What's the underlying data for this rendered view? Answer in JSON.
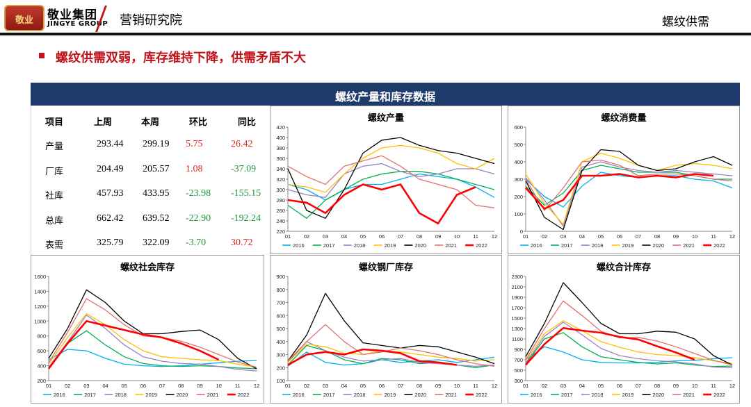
{
  "header": {
    "logo_text": "敬业",
    "company_cn": "敬业集团",
    "company_en": "JINGYE GROUP",
    "institute": "营销研究院",
    "section": "螺纹供需"
  },
  "subtitle": "螺纹供需双弱，库存维持下降，供需矛盾不大",
  "panel_title": "螺纹产量和库存数据",
  "colors": {
    "accent_red": "#c0141c",
    "navy": "#1f3b6b",
    "positive": "#e0251b",
    "negative": "#1f9a3a"
  },
  "table": {
    "headers": [
      "项目",
      "上周",
      "本周",
      "环比",
      "同比"
    ],
    "rows": [
      {
        "name": "产量",
        "prev": "293.44",
        "curr": "299.19",
        "wow": "5.75",
        "yoy": "26.42",
        "wow_sign": "pos",
        "yoy_sign": "pos"
      },
      {
        "name": "厂库",
        "prev": "204.49",
        "curr": "205.57",
        "wow": "1.08",
        "yoy": "-37.09",
        "wow_sign": "pos",
        "yoy_sign": "neg"
      },
      {
        "name": "社库",
        "prev": "457.93",
        "curr": "433.95",
        "wow": "-23.98",
        "yoy": "-155.15",
        "wow_sign": "neg",
        "yoy_sign": "neg"
      },
      {
        "name": "总库",
        "prev": "662.42",
        "curr": "639.52",
        "wow": "-22.90",
        "yoy": "-192.24",
        "wow_sign": "neg",
        "yoy_sign": "neg"
      },
      {
        "name": "表需",
        "prev": "325.79",
        "curr": "322.09",
        "wow": "-3.70",
        "yoy": "30.72",
        "wow_sign": "neg",
        "yoy_sign": "pos"
      }
    ]
  },
  "series_style": [
    {
      "name": "2016",
      "color": "#00b0f0"
    },
    {
      "name": "2017",
      "color": "#00b050"
    },
    {
      "name": "2018",
      "color": "#9b7fc7"
    },
    {
      "name": "2019",
      "color": "#ffc000"
    },
    {
      "name": "2020",
      "color": "#000000"
    },
    {
      "name": "2021",
      "color": "#e07070"
    },
    {
      "name": "2022",
      "color": "#ff0000"
    }
  ],
  "chart_data": [
    {
      "id": "production",
      "type": "line",
      "title": "螺纹产量",
      "x_ticks": [
        "01",
        "02",
        "03",
        "04",
        "05",
        "06",
        "07",
        "08",
        "09",
        "10",
        "11",
        "12"
      ],
      "ylim": [
        220,
        420
      ],
      "y_ticks": [
        220,
        240,
        260,
        280,
        300,
        320,
        340,
        360,
        380,
        400,
        420
      ],
      "legend_position": "bottom",
      "series": [
        {
          "name": "2016",
          "values": [
            310,
            300,
            280,
            300,
            310,
            310,
            320,
            330,
            325,
            320,
            305,
            285
          ]
        },
        {
          "name": "2017",
          "values": [
            270,
            245,
            280,
            300,
            320,
            330,
            335,
            335,
            330,
            320,
            310,
            300
          ]
        },
        {
          "name": "2018",
          "values": [
            300,
            290,
            285,
            330,
            345,
            350,
            335,
            325,
            330,
            340,
            340,
            330
          ]
        },
        {
          "name": "2019",
          "values": [
            310,
            305,
            295,
            330,
            360,
            380,
            385,
            380,
            370,
            350,
            340,
            360
          ]
        },
        {
          "name": "2020",
          "values": [
            340,
            260,
            245,
            300,
            370,
            395,
            400,
            385,
            375,
            370,
            360,
            350
          ]
        },
        {
          "name": "2021",
          "values": [
            345,
            325,
            310,
            345,
            355,
            365,
            345,
            320,
            310,
            300,
            270,
            265
          ]
        },
        {
          "name": "2022",
          "values": [
            280,
            275,
            255,
            290,
            310,
            300,
            310,
            255,
            235,
            290,
            305,
            null
          ]
        }
      ]
    },
    {
      "id": "consumption",
      "type": "line",
      "title": "螺纹消费量",
      "x_ticks": [
        "01",
        "02",
        "03",
        "04",
        "05",
        "06",
        "07",
        "08",
        "09",
        "10",
        "11",
        "12"
      ],
      "ylim": [
        0,
        600
      ],
      "y_ticks": [
        0,
        100,
        200,
        300,
        400,
        500,
        600
      ],
      "legend_position": "bottom",
      "series": [
        {
          "name": "2016",
          "values": [
            300,
            200,
            140,
            260,
            340,
            320,
            310,
            320,
            320,
            300,
            290,
            250
          ]
        },
        {
          "name": "2017",
          "values": [
            260,
            150,
            220,
            350,
            380,
            360,
            340,
            340,
            340,
            320,
            300,
            300
          ]
        },
        {
          "name": "2018",
          "values": [
            310,
            180,
            30,
            370,
            400,
            370,
            350,
            340,
            350,
            340,
            330,
            320
          ]
        },
        {
          "name": "2019",
          "values": [
            330,
            160,
            40,
            400,
            450,
            420,
            380,
            350,
            380,
            390,
            380,
            360
          ]
        },
        {
          "name": "2020",
          "values": [
            290,
            80,
            10,
            350,
            470,
            460,
            380,
            350,
            360,
            400,
            430,
            380
          ]
        },
        {
          "name": "2021",
          "values": [
            300,
            120,
            250,
            400,
            410,
            380,
            320,
            330,
            330,
            320,
            300,
            290
          ]
        },
        {
          "name": "2022",
          "values": [
            250,
            130,
            180,
            320,
            320,
            330,
            310,
            320,
            310,
            330,
            320,
            null
          ]
        }
      ]
    },
    {
      "id": "social_inventory",
      "type": "line",
      "title": "螺纹社会库存",
      "x_ticks": [
        "01",
        "02",
        "03",
        "04",
        "05",
        "06",
        "07",
        "08",
        "09",
        "10",
        "11",
        "12"
      ],
      "ylim": [
        200,
        1600
      ],
      "y_ticks": [
        200,
        400,
        600,
        800,
        1000,
        1200,
        1400,
        1600
      ],
      "legend_position": "bottom",
      "series": [
        {
          "name": "2016",
          "values": [
            480,
            620,
            600,
            500,
            420,
            400,
            390,
            400,
            420,
            440,
            460,
            470
          ]
        },
        {
          "name": "2017",
          "values": [
            380,
            700,
            870,
            680,
            520,
            430,
            400,
            390,
            400,
            390,
            370,
            360
          ]
        },
        {
          "name": "2018",
          "values": [
            380,
            720,
            1080,
            900,
            680,
            520,
            460,
            430,
            420,
            390,
            350,
            330
          ]
        },
        {
          "name": "2019",
          "values": [
            420,
            780,
            1100,
            950,
            750,
            600,
            520,
            500,
            480,
            470,
            420,
            380
          ]
        },
        {
          "name": "2020",
          "values": [
            500,
            900,
            1420,
            1250,
            1000,
            830,
            830,
            860,
            880,
            750,
            500,
            360
          ]
        },
        {
          "name": "2021",
          "values": [
            440,
            850,
            1300,
            1150,
            950,
            800,
            780,
            730,
            650,
            550,
            450,
            380
          ]
        },
        {
          "name": "2022",
          "values": [
            360,
            700,
            1000,
            940,
            880,
            820,
            780,
            700,
            600,
            480,
            null,
            null
          ]
        }
      ]
    },
    {
      "id": "factory_inventory",
      "type": "line",
      "title": "螺纹钢厂库存",
      "x_ticks": [
        "01",
        "02",
        "03",
        "04",
        "05",
        "06",
        "07",
        "08",
        "09",
        "10",
        "11",
        "12"
      ],
      "ylim": [
        100,
        900
      ],
      "y_ticks": [
        100,
        200,
        300,
        400,
        500,
        600,
        700,
        800,
        900
      ],
      "legend_position": "bottom",
      "series": [
        {
          "name": "2016",
          "values": [
            210,
            320,
            240,
            220,
            230,
            260,
            240,
            250,
            260,
            240,
            260,
            280
          ]
        },
        {
          "name": "2017",
          "values": [
            220,
            370,
            330,
            260,
            230,
            270,
            260,
            230,
            240,
            220,
            200,
            220
          ]
        },
        {
          "name": "2018",
          "values": [
            240,
            400,
            330,
            280,
            250,
            260,
            270,
            240,
            230,
            220,
            210,
            220
          ]
        },
        {
          "name": "2019",
          "values": [
            240,
            380,
            360,
            310,
            300,
            330,
            320,
            300,
            280,
            270,
            250,
            260
          ]
        },
        {
          "name": "2020",
          "values": [
            250,
            450,
            770,
            560,
            390,
            370,
            350,
            370,
            360,
            320,
            280,
            230
          ]
        },
        {
          "name": "2021",
          "values": [
            250,
            400,
            530,
            400,
            300,
            320,
            350,
            330,
            300,
            260,
            230,
            210
          ]
        },
        {
          "name": "2022",
          "values": [
            220,
            300,
            320,
            300,
            340,
            330,
            310,
            250,
            240,
            220,
            null,
            null
          ]
        }
      ]
    },
    {
      "id": "total_inventory",
      "type": "line",
      "title": "螺纹合计库存",
      "x_ticks": [
        "01",
        "02",
        "03",
        "04",
        "05",
        "06",
        "07",
        "08",
        "09",
        "10",
        "11",
        "12"
      ],
      "ylim": [
        300,
        2300
      ],
      "y_ticks": [
        300,
        500,
        700,
        900,
        1100,
        1300,
        1500,
        1700,
        1900,
        2100,
        2300
      ],
      "legend_position": "bottom",
      "series": [
        {
          "name": "2016",
          "values": [
            700,
            950,
            850,
            700,
            650,
            640,
            640,
            650,
            680,
            690,
            720,
            740
          ]
        },
        {
          "name": "2017",
          "values": [
            620,
            1100,
            1220,
            950,
            760,
            700,
            650,
            620,
            640,
            600,
            570,
            580
          ]
        },
        {
          "name": "2018",
          "values": [
            640,
            1150,
            1420,
            1180,
            920,
            780,
            720,
            680,
            660,
            620,
            560,
            550
          ]
        },
        {
          "name": "2019",
          "values": [
            680,
            1200,
            1450,
            1260,
            1050,
            940,
            850,
            800,
            780,
            740,
            680,
            630
          ]
        },
        {
          "name": "2020",
          "values": [
            760,
            1400,
            2180,
            1800,
            1400,
            1200,
            1200,
            1250,
            1230,
            1100,
            780,
            600
          ]
        },
        {
          "name": "2021",
          "values": [
            700,
            1300,
            1830,
            1550,
            1250,
            1120,
            1130,
            1060,
            950,
            820,
            690,
            600
          ]
        },
        {
          "name": "2022",
          "values": [
            600,
            1000,
            1310,
            1260,
            1220,
            1140,
            1090,
            960,
            840,
            700,
            null,
            null
          ]
        }
      ]
    }
  ]
}
